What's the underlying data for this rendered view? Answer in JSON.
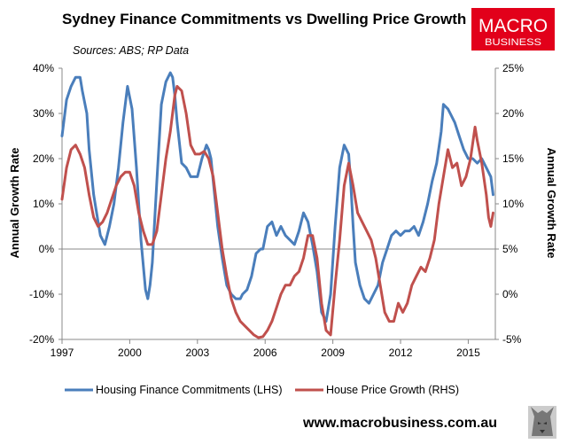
{
  "chart_data": {
    "type": "line",
    "title": "Sydney Finance Commitments vs Dwelling Price Growth",
    "subtitle": "Sources: ABS; RP Data",
    "ylabel": "Annual Growth Rate",
    "y2label": "Annual Growth Rate",
    "xlim": [
      1997,
      2016.2
    ],
    "ylim": [
      -20,
      40
    ],
    "y2lim": [
      -5,
      25
    ],
    "x_ticks": [
      1997,
      2000,
      2003,
      2006,
      2009,
      2012,
      2015
    ],
    "x_tick_labels": [
      "1997",
      "2000",
      "2003",
      "2006",
      "2009",
      "2012",
      "2015"
    ],
    "y_ticks": [
      -20,
      -10,
      0,
      10,
      20,
      30,
      40
    ],
    "y_tick_labels": [
      "-20%",
      "-10%",
      "0%",
      "10%",
      "20%",
      "30%",
      "40%"
    ],
    "y2_ticks": [
      -5,
      0,
      5,
      10,
      15,
      20,
      25
    ],
    "y2_tick_labels": [
      "-5%",
      "0%",
      "5%",
      "10%",
      "15%",
      "20%",
      "25%"
    ],
    "grid": false,
    "legend_position": "bottom",
    "series": [
      {
        "name": "Housing Finance Commitments (LHS)",
        "axis": "left",
        "color": "#4a7ebb",
        "x": [
          1997.0,
          1997.2,
          1997.4,
          1997.6,
          1997.8,
          1997.9,
          1998.1,
          1998.2,
          1998.4,
          1998.6,
          1998.7,
          1998.9,
          1999.1,
          1999.3,
          1999.5,
          1999.7,
          1999.9,
          2000.1,
          2000.3,
          2000.5,
          2000.7,
          2000.8,
          2000.9,
          2001.0,
          2001.2,
          2001.4,
          2001.6,
          2001.8,
          2001.9,
          2002.0,
          2002.1,
          2002.3,
          2002.5,
          2002.7,
          2002.9,
          2003.0,
          2003.2,
          2003.4,
          2003.5,
          2003.6,
          2003.8,
          2003.9,
          2004.1,
          2004.3,
          2004.5,
          2004.7,
          2004.9,
          2005.0,
          2005.2,
          2005.4,
          2005.6,
          2005.8,
          2005.9,
          2006.1,
          2006.3,
          2006.5,
          2006.7,
          2006.9,
          2007.1,
          2007.3,
          2007.5,
          2007.7,
          2007.9,
          2008.1,
          2008.3,
          2008.5,
          2008.7,
          2008.9,
          2009.1,
          2009.3,
          2009.5,
          2009.7,
          2009.8,
          2009.9,
          2010.0,
          2010.2,
          2010.4,
          2010.6,
          2010.8,
          2011.0,
          2011.2,
          2011.4,
          2011.6,
          2011.8,
          2012.0,
          2012.2,
          2012.4,
          2012.6,
          2012.8,
          2013.0,
          2013.2,
          2013.4,
          2013.6,
          2013.8,
          2013.9,
          2014.1,
          2014.2,
          2014.4,
          2014.6,
          2014.8,
          2015.0,
          2015.2,
          2015.4,
          2015.6,
          2015.8,
          2016.0,
          2016.1
        ],
        "values": [
          25,
          33,
          36,
          38,
          38,
          35,
          30,
          22,
          12,
          6,
          3,
          1,
          5,
          10,
          18,
          28,
          36,
          31,
          18,
          2,
          -9,
          -11,
          -8,
          -3,
          15,
          32,
          37,
          39,
          38,
          34,
          28,
          19,
          18,
          16,
          16,
          16,
          20,
          23,
          22,
          20,
          10,
          5,
          -2,
          -8,
          -10,
          -11,
          -11,
          -10,
          -9,
          -6,
          -1,
          0,
          0,
          5,
          6,
          3,
          5,
          3,
          2,
          1,
          4,
          8,
          6,
          1,
          -5,
          -14,
          -16,
          -10,
          5,
          18,
          23,
          21,
          14,
          5,
          -3,
          -8,
          -11,
          -12,
          -10,
          -8,
          -3,
          0,
          3,
          4,
          3,
          4,
          4,
          5,
          3,
          6,
          10,
          15,
          19,
          26,
          32,
          31,
          30,
          28,
          25,
          22,
          20,
          20,
          19,
          20,
          18,
          16,
          12
        ]
      },
      {
        "name": "House Price Growth (RHS)",
        "axis": "right",
        "color": "#c0504d",
        "x": [
          1997.0,
          1997.2,
          1997.4,
          1997.6,
          1997.8,
          1998.0,
          1998.2,
          1998.4,
          1998.6,
          1998.8,
          1999.0,
          1999.2,
          1999.4,
          1999.6,
          1999.8,
          2000.0,
          2000.2,
          2000.4,
          2000.6,
          2000.8,
          2001.0,
          2001.2,
          2001.4,
          2001.6,
          2001.8,
          2002.0,
          2002.1,
          2002.3,
          2002.5,
          2002.7,
          2002.9,
          2003.1,
          2003.3,
          2003.5,
          2003.7,
          2003.9,
          2004.1,
          2004.3,
          2004.5,
          2004.7,
          2004.9,
          2005.1,
          2005.3,
          2005.5,
          2005.7,
          2005.9,
          2006.1,
          2006.3,
          2006.5,
          2006.7,
          2006.9,
          2007.1,
          2007.3,
          2007.5,
          2007.7,
          2007.9,
          2008.1,
          2008.3,
          2008.5,
          2008.7,
          2008.9,
          2009.1,
          2009.3,
          2009.5,
          2009.7,
          2009.9,
          2010.1,
          2010.3,
          2010.5,
          2010.7,
          2010.9,
          2011.1,
          2011.3,
          2011.5,
          2011.7,
          2011.9,
          2012.1,
          2012.3,
          2012.5,
          2012.7,
          2012.9,
          2013.1,
          2013.3,
          2013.5,
          2013.7,
          2013.9,
          2014.1,
          2014.3,
          2014.5,
          2014.7,
          2014.9,
          2015.1,
          2015.3,
          2015.4,
          2015.6,
          2015.8,
          2015.9,
          2016.0,
          2016.1
        ],
        "values": [
          10.5,
          14,
          16,
          16.5,
          15.5,
          14,
          11,
          8.5,
          7.5,
          8,
          9,
          10.5,
          12,
          13,
          13.5,
          13.5,
          12,
          9,
          7,
          5.5,
          5.5,
          7,
          11,
          15,
          18,
          22,
          23,
          22.5,
          20,
          16.5,
          15.5,
          15.5,
          15.8,
          15,
          13,
          9,
          5,
          2,
          -0.5,
          -2,
          -3,
          -3.5,
          -4,
          -4.5,
          -4.8,
          -4.7,
          -4,
          -3,
          -1.5,
          0,
          1,
          1,
          2,
          2.5,
          4,
          6.5,
          6.5,
          4,
          -1,
          -4,
          -4.5,
          1,
          6,
          12,
          14.5,
          12,
          9,
          8,
          7,
          6,
          4,
          1,
          -2,
          -3,
          -3,
          -1,
          -2,
          -1,
          1,
          2,
          3,
          2.5,
          4,
          6,
          10,
          13,
          16,
          14,
          14.5,
          12,
          13,
          15,
          18.5,
          17,
          14.5,
          11,
          8.5,
          7.5,
          9
        ]
      }
    ]
  },
  "branding": {
    "logo_line1": "MACRO",
    "logo_line2": "BUSINESS",
    "logo_color": "#e2001a",
    "website": "www.macrobusiness.com.au"
  }
}
